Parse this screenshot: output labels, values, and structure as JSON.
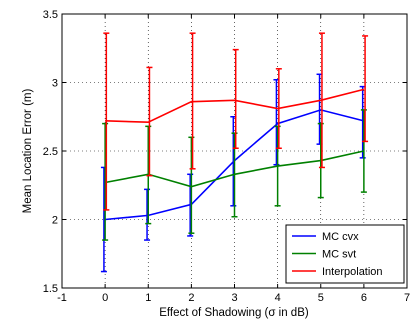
{
  "chart_data": {
    "type": "line",
    "title": "",
    "xlabel": "Effect of Shadowing (σ in dB)",
    "ylabel": "Mean Location Error (m)",
    "xlim": [
      -1,
      7
    ],
    "ylim": [
      1.5,
      3.5
    ],
    "x_ticks": [
      "-1",
      "0",
      "1",
      "2",
      "3",
      "4",
      "5",
      "6",
      "7"
    ],
    "y_ticks": [
      "1.5",
      "2",
      "2.5",
      "3",
      "3.5"
    ],
    "grid": true,
    "legend_position": "bottom-right",
    "series": [
      {
        "name": "MC cvx",
        "color": "#0000ff",
        "x": [
          0,
          1,
          2,
          3,
          4,
          5,
          6
        ],
        "y": [
          2.0,
          2.03,
          2.11,
          2.43,
          2.7,
          2.8,
          2.72
        ],
        "err_low": [
          1.62,
          1.85,
          1.88,
          2.1,
          2.4,
          2.55,
          2.45
        ],
        "err_high": [
          2.38,
          2.22,
          2.33,
          2.75,
          3.02,
          3.06,
          2.97
        ]
      },
      {
        "name": "MC svt",
        "color": "#008000",
        "x": [
          0,
          1,
          2,
          3,
          4,
          5,
          6
        ],
        "y": [
          2.27,
          2.33,
          2.24,
          2.33,
          2.39,
          2.43,
          2.5
        ],
        "err_low": [
          1.85,
          1.97,
          1.9,
          2.02,
          2.1,
          2.16,
          2.2
        ],
        "err_high": [
          2.7,
          2.68,
          2.6,
          2.63,
          2.68,
          2.7,
          2.8
        ]
      },
      {
        "name": "Interpolation",
        "color": "#ff0000",
        "x": [
          0,
          1,
          2,
          3,
          4,
          5,
          6
        ],
        "y": [
          2.72,
          2.71,
          2.86,
          2.87,
          2.81,
          2.87,
          2.95
        ],
        "err_low": [
          2.07,
          2.32,
          2.37,
          2.52,
          2.52,
          2.38,
          2.57
        ],
        "err_high": [
          3.36,
          3.11,
          3.36,
          3.24,
          3.1,
          3.36,
          3.34
        ]
      }
    ]
  }
}
